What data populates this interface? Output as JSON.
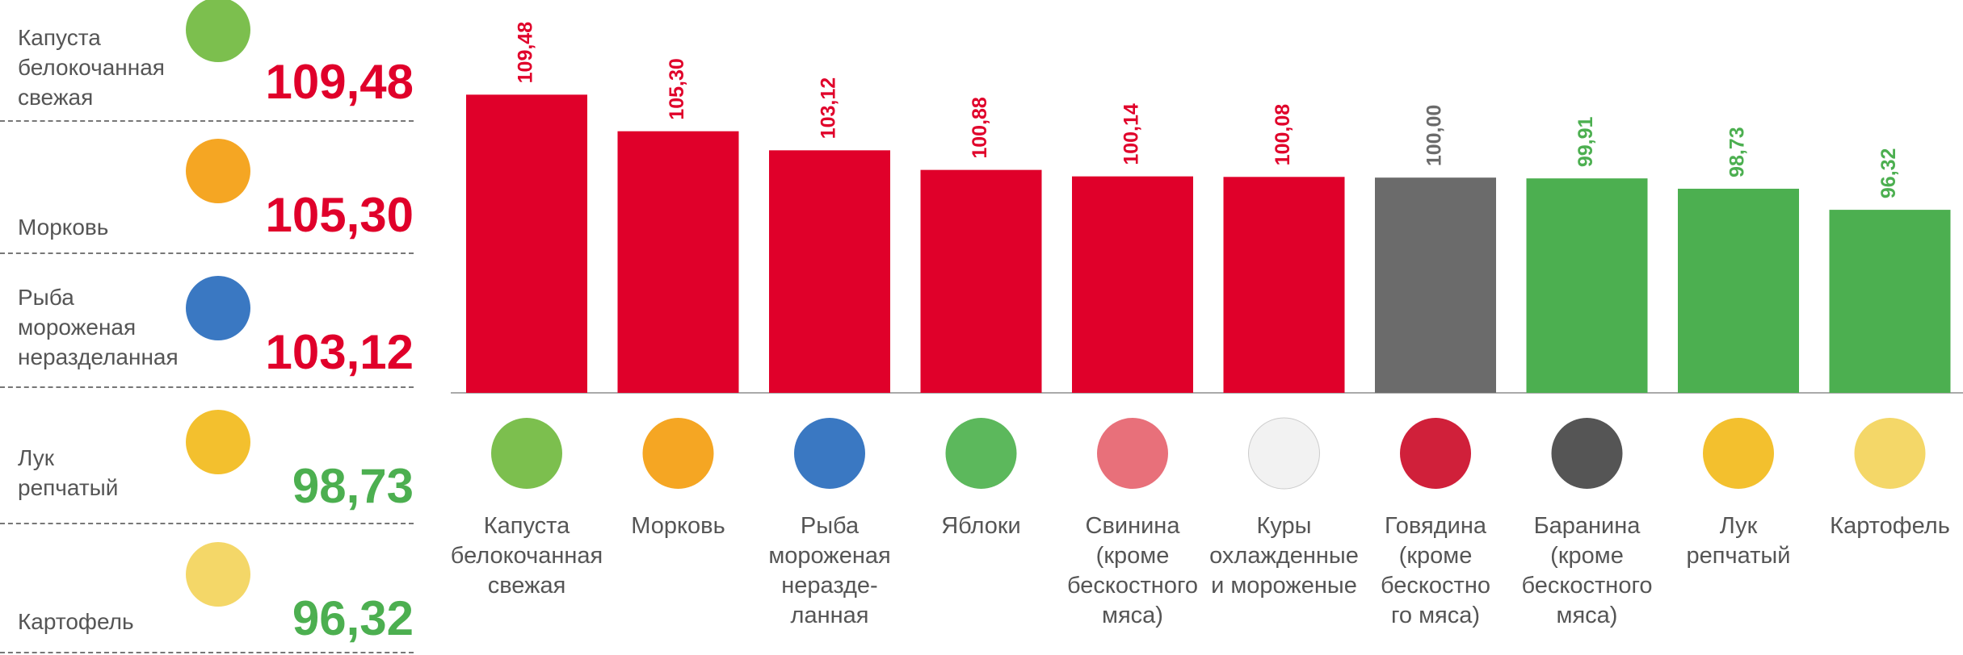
{
  "summary": {
    "items": [
      {
        "name": "Капуста\nбелокочанная\nсвежая",
        "value": "109,48",
        "color": "#e0002a"
      },
      {
        "name": "Морковь",
        "value": "105,30",
        "color": "#e0002a"
      },
      {
        "name": "Рыба\nмороженая\nнеразделанная",
        "value": "103,12",
        "color": "#e0002a"
      },
      {
        "name": "Лук\nрепчатый",
        "value": "98,73",
        "color": "#4caf50"
      },
      {
        "name": "Картофель",
        "value": "96,32",
        "color": "#4caf50"
      }
    ]
  },
  "chart_data": {
    "type": "bar",
    "categories": [
      "Капуста\nбелокочанная\nсвежая",
      "Морковь",
      "Рыба\nмороженая\nнеразде-\nланная",
      "Яблоки",
      "Свинина\n(кроме\nбескостного\nмяса)",
      "Куры\nохлажденные\nи мороженые",
      "Говядина\n(кроме\nбескостно\nго мяса)",
      "Баранина\n(кроме\nбескостного\nмяса)",
      "Лук\nрепчатый",
      "Картофель"
    ],
    "values": [
      109.48,
      105.3,
      103.12,
      100.88,
      100.14,
      100.08,
      100.0,
      99.91,
      98.73,
      96.32
    ],
    "value_labels": [
      "109,48",
      "105,30",
      "103,12",
      "100,88",
      "100,14",
      "100,08",
      "100,00",
      "99,91",
      "98,73",
      "96,32"
    ],
    "colors": [
      "#e0002a",
      "#e0002a",
      "#e0002a",
      "#e0002a",
      "#e0002a",
      "#e0002a",
      "#6b6b6b",
      "#4caf50",
      "#4caf50",
      "#4caf50"
    ],
    "ylim": [
      75.4,
      120.3
    ]
  }
}
